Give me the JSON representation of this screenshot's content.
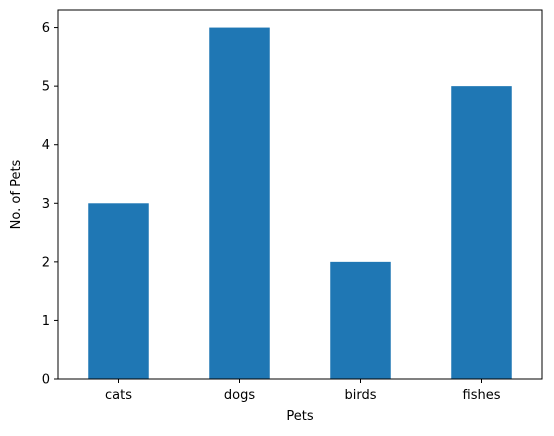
{
  "chart_data": {
    "type": "bar",
    "categories": [
      "cats",
      "dogs",
      "birds",
      "fishes"
    ],
    "values": [
      3,
      6,
      2,
      5
    ],
    "xlabel": "Pets",
    "ylabel": "No. of Pets",
    "ylim": [
      0,
      6.3
    ],
    "yticks": [
      0,
      1,
      2,
      3,
      4,
      5,
      6
    ],
    "grid": false,
    "bar_color": "#1f77b4"
  }
}
